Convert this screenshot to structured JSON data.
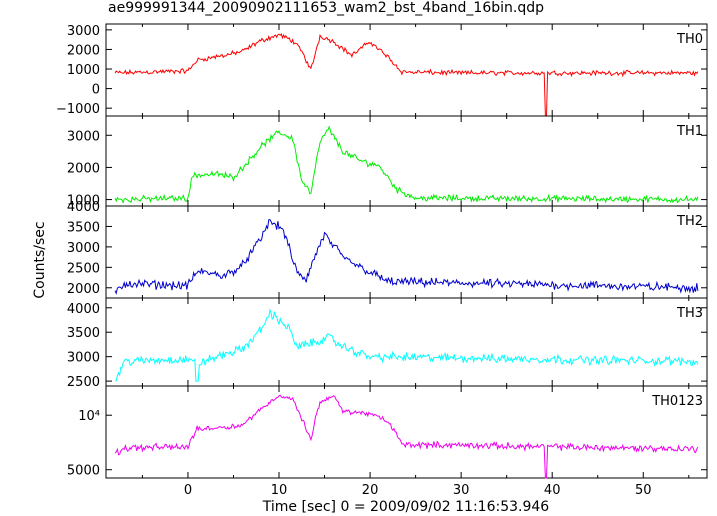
{
  "title": "ae999991344_20090902111653_wam2_bst_4band_16bin.qdp",
  "chart_data": {
    "type": "line",
    "xlabel": "Time [sec] 0 = 2009/09/02 11:16:53.946",
    "ylabel": "Counts/sec",
    "xlim": [
      -9,
      57
    ],
    "xticks": [
      0,
      10,
      20,
      30,
      40,
      50
    ],
    "grid": false,
    "panels": [
      {
        "name": "TH0",
        "color": "#ff0000",
        "ylim": [
          -1400,
          3300
        ],
        "yticks": [
          -1000,
          0,
          1000,
          2000,
          3000
        ],
        "ytick_labels": [
          "−1000",
          "0",
          "1000",
          "2000",
          "3000"
        ],
        "profile": [
          [
            -8,
            800
          ],
          [
            0,
            900
          ],
          [
            1,
            1450
          ],
          [
            4,
            1700
          ],
          [
            6,
            1900
          ],
          [
            8,
            2450
          ],
          [
            10,
            2750
          ],
          [
            11.5,
            2450
          ],
          [
            12.5,
            1900
          ],
          [
            13.5,
            950
          ],
          [
            14.5,
            2700
          ],
          [
            16,
            2400
          ],
          [
            18,
            1700
          ],
          [
            20,
            2400
          ],
          [
            22,
            1600
          ],
          [
            23.5,
            850
          ],
          [
            30,
            800
          ],
          [
            56,
            800
          ]
        ],
        "dips": [
          [
            39.3,
            -1400
          ]
        ],
        "noise": 150
      },
      {
        "name": "TH1",
        "color": "#00ee00",
        "ylim": [
          800,
          3600
        ],
        "yticks": [
          1000,
          2000,
          3000
        ],
        "ytick_labels": [
          "1000",
          "2000",
          "3000"
        ],
        "profile": [
          [
            -8,
            1000
          ],
          [
            0,
            1050
          ],
          [
            0.5,
            1750
          ],
          [
            3,
            1800
          ],
          [
            5,
            1700
          ],
          [
            6.5,
            2150
          ],
          [
            8,
            2650
          ],
          [
            10,
            3100
          ],
          [
            11.5,
            2900
          ],
          [
            12.5,
            1600
          ],
          [
            13.5,
            1200
          ],
          [
            14.5,
            2800
          ],
          [
            15.5,
            3200
          ],
          [
            17,
            2500
          ],
          [
            19,
            2200
          ],
          [
            21,
            2050
          ],
          [
            23,
            1300
          ],
          [
            25,
            1050
          ],
          [
            56,
            1000
          ]
        ],
        "dips": [],
        "noise": 120
      },
      {
        "name": "TH2",
        "color": "#0000cc",
        "ylim": [
          1750,
          4000
        ],
        "yticks": [
          2000,
          2500,
          3000,
          3500,
          4000
        ],
        "ytick_labels": [
          "2000",
          "2500",
          "3000",
          "3500",
          "4000"
        ],
        "profile": [
          [
            -8,
            1850
          ],
          [
            -7,
            2100
          ],
          [
            0,
            2050
          ],
          [
            1,
            2400
          ],
          [
            4,
            2300
          ],
          [
            6,
            2550
          ],
          [
            8,
            3200
          ],
          [
            9,
            3650
          ],
          [
            10.5,
            3400
          ],
          [
            12,
            2350
          ],
          [
            13,
            2200
          ],
          [
            14,
            2800
          ],
          [
            15,
            3300
          ],
          [
            17,
            2750
          ],
          [
            19,
            2500
          ],
          [
            22,
            2150
          ],
          [
            56,
            2000
          ]
        ],
        "dips": [],
        "noise": 130
      },
      {
        "name": "TH3",
        "color": "#00ffff",
        "ylim": [
          2400,
          4200
        ],
        "yticks": [
          2500,
          3000,
          3500,
          4000
        ],
        "ytick_labels": [
          "2500",
          "3000",
          "3500",
          "4000"
        ],
        "profile": [
          [
            -8,
            2500
          ],
          [
            -7,
            2900
          ],
          [
            0,
            2950
          ],
          [
            1,
            2850
          ],
          [
            4,
            3050
          ],
          [
            6,
            3150
          ],
          [
            8,
            3550
          ],
          [
            9,
            3900
          ],
          [
            11,
            3600
          ],
          [
            12,
            3200
          ],
          [
            14,
            3300
          ],
          [
            15.5,
            3400
          ],
          [
            17,
            3200
          ],
          [
            20,
            3000
          ],
          [
            56,
            2900
          ]
        ],
        "dips": [
          [
            1,
            2500
          ]
        ],
        "noise": 110
      },
      {
        "name": "TH0123",
        "color": "#ee00ee",
        "ylim": [
          4500,
          14500
        ],
        "log": true,
        "yticks": [
          5000,
          10000
        ],
        "ytick_labels": [
          "5000",
          "10⁴"
        ],
        "profile": [
          [
            -8,
            6100
          ],
          [
            -7,
            6600
          ],
          [
            0,
            6700
          ],
          [
            1,
            8400
          ],
          [
            4,
            8600
          ],
          [
            6,
            8800
          ],
          [
            8,
            10800
          ],
          [
            10,
            12800
          ],
          [
            11.5,
            12300
          ],
          [
            12.5,
            9500
          ],
          [
            13.5,
            7300
          ],
          [
            14.5,
            11800
          ],
          [
            16,
            12800
          ],
          [
            17,
            10500
          ],
          [
            20,
            10200
          ],
          [
            22,
            9200
          ],
          [
            23.5,
            6900
          ],
          [
            56,
            6500
          ]
        ],
        "dips": [
          [
            39.3,
            4400
          ]
        ],
        "noise": 350
      }
    ]
  }
}
